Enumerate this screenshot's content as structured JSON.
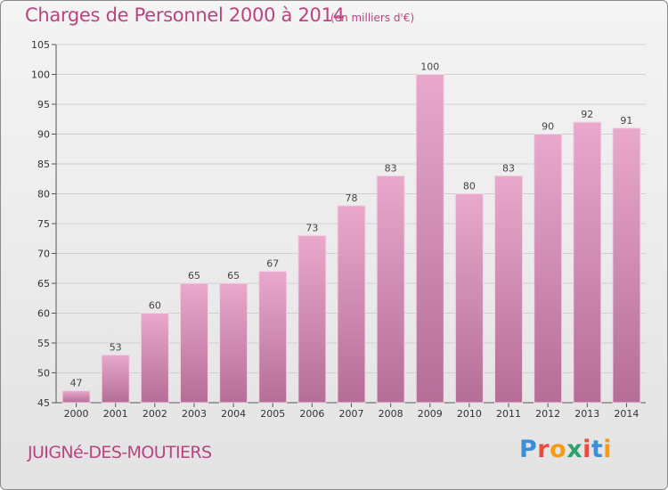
{
  "header": {
    "title": "Charges de Personnel 2000 à 2014",
    "unit_note": "(en milliers d'€)"
  },
  "footer": {
    "commune": "JUIGNé-DES-MOUTIERS",
    "logo_text": "Proxiti",
    "logo_colors": [
      "#3b8fd6",
      "#e84c3d",
      "#f39c12",
      "#2ba36b",
      "#e84c3d",
      "#3b8fd6",
      "#f39c12"
    ]
  },
  "colors": {
    "title": "#b8457f",
    "bar_top": "#e9a8cc",
    "bar_bottom": "#b56e97",
    "grid": "#cfcfcf"
  },
  "chart_data": {
    "type": "bar",
    "title": "Charges de Personnel 2000 à 2014",
    "subtitle": "(en milliers d'€)",
    "categories": [
      "2000",
      "2001",
      "2002",
      "2003",
      "2004",
      "2005",
      "2006",
      "2007",
      "2008",
      "2009",
      "2010",
      "2011",
      "2012",
      "2013",
      "2014"
    ],
    "values": [
      47,
      53,
      60,
      65,
      65,
      67,
      73,
      78,
      83,
      100,
      80,
      83,
      90,
      92,
      91
    ],
    "ylim": [
      45,
      105
    ],
    "yticks": [
      45,
      50,
      55,
      60,
      65,
      70,
      75,
      80,
      85,
      90,
      95,
      100,
      105
    ],
    "grid": true,
    "data_labels": true
  }
}
